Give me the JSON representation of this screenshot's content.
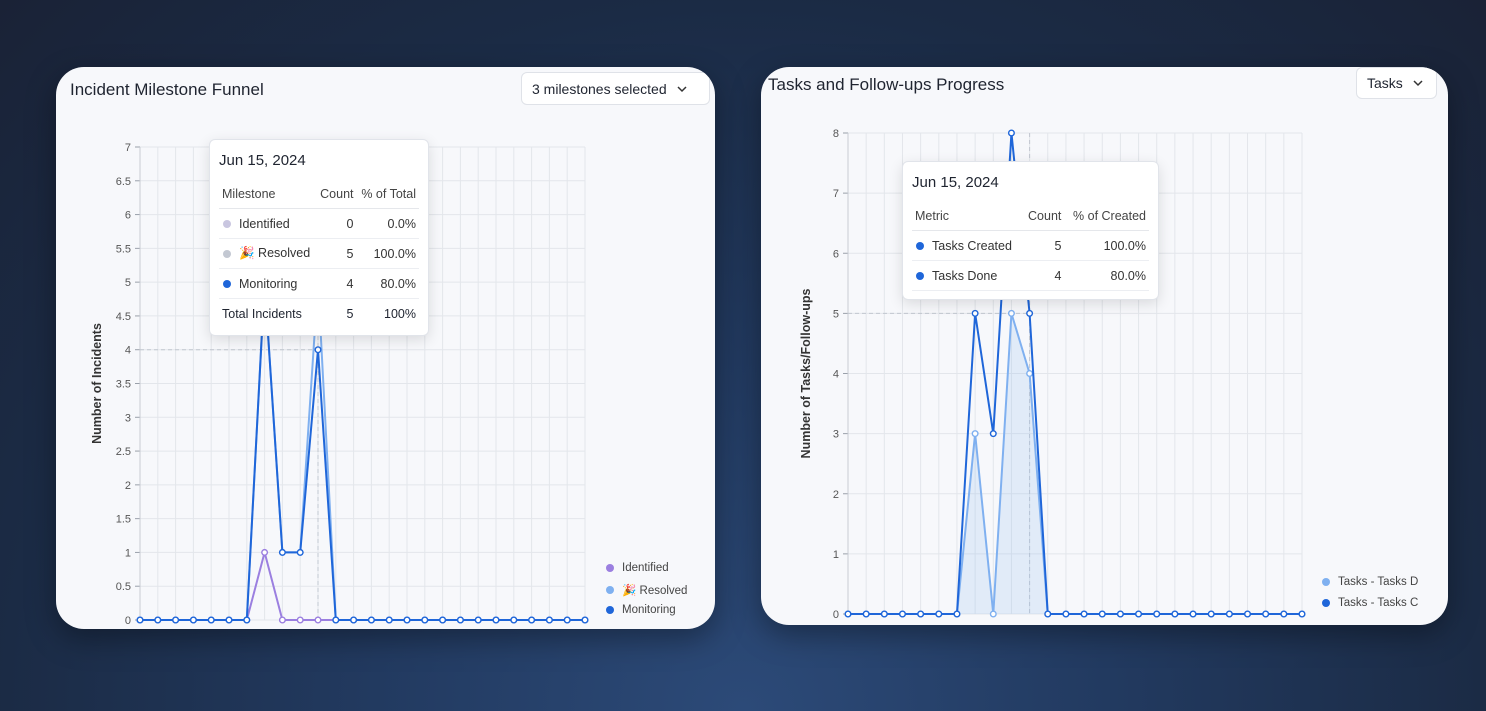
{
  "chart_data": [
    {
      "type": "line",
      "title": "Incident Milestone Funnel",
      "ylabel": "Number of Incidents",
      "xlabel": "",
      "ylim": [
        0,
        7
      ],
      "yticks": [
        "0",
        "0.5",
        "1",
        "1.5",
        "2",
        "2.5",
        "3",
        "3.5",
        "4",
        "4.5",
        "5",
        "5.5",
        "6",
        "6.5",
        "7"
      ],
      "x": [
        0,
        1,
        2,
        3,
        4,
        5,
        6,
        7,
        8,
        9,
        10,
        11,
        12,
        13,
        14,
        15,
        16,
        17,
        18,
        19,
        20,
        21,
        22,
        23,
        24,
        25
      ],
      "grid": true,
      "legend_position": "bottom-right",
      "series": [
        {
          "name": "Identified",
          "color": "#9b7fe0",
          "values": [
            0,
            0,
            0,
            0,
            0,
            0,
            0,
            1,
            0,
            0,
            0,
            0,
            0,
            0,
            0,
            0,
            0,
            0,
            0,
            0,
            0,
            0,
            0,
            0,
            0,
            0
          ]
        },
        {
          "name": "🎉 Resolved",
          "color": "#7fb0f0",
          "values": [
            0,
            0,
            0,
            0,
            0,
            0,
            0,
            5,
            1,
            1,
            5,
            0,
            0,
            0,
            0,
            0,
            0,
            0,
            0,
            0,
            0,
            0,
            0,
            0,
            0,
            0
          ]
        },
        {
          "name": "Monitoring",
          "color": "#1f66d9",
          "values": [
            0,
            0,
            0,
            0,
            0,
            0,
            0,
            5,
            1,
            1,
            4,
            0,
            0,
            0,
            0,
            0,
            0,
            0,
            0,
            0,
            0,
            0,
            0,
            0,
            0,
            0
          ]
        }
      ],
      "hover_index": 10,
      "tooltip": {
        "date": "Jun 15, 2024",
        "headers": [
          "Milestone",
          "Count",
          "% of Total"
        ],
        "rows": [
          {
            "label": "Identified",
            "count": "0",
            "pct": "0.0%",
            "color": "#c9c6e0"
          },
          {
            "label": "🎉 Resolved",
            "count": "5",
            "pct": "100.0%",
            "color": "#c3c8d2"
          },
          {
            "label": "Monitoring",
            "count": "4",
            "pct": "80.0%",
            "color": "#1f66d9"
          }
        ],
        "total": {
          "label": "Total Incidents",
          "count": "5",
          "pct": "100%"
        }
      }
    },
    {
      "type": "area",
      "title": "Tasks and Follow-ups Progress",
      "ylabel": "Number of Tasks/Follow-ups",
      "xlabel": "",
      "ylim": [
        0,
        8
      ],
      "yticks": [
        "0",
        "1",
        "2",
        "3",
        "4",
        "5",
        "6",
        "7",
        "8"
      ],
      "x": [
        0,
        1,
        2,
        3,
        4,
        5,
        6,
        7,
        8,
        9,
        10,
        11,
        12,
        13,
        14,
        15,
        16,
        17,
        18,
        19,
        20,
        21,
        22,
        23,
        24,
        25
      ],
      "grid": true,
      "legend_position": "bottom-right",
      "series": [
        {
          "name": "Tasks - Tasks D",
          "color": "#7fb0f0",
          "values": [
            0,
            0,
            0,
            0,
            0,
            0,
            0,
            3,
            0,
            5,
            4,
            0,
            0,
            0,
            0,
            0,
            0,
            0,
            0,
            0,
            0,
            0,
            0,
            0,
            0,
            0
          ]
        },
        {
          "name": "Tasks - Tasks C",
          "color": "#1f66d9",
          "values": [
            0,
            0,
            0,
            0,
            0,
            0,
            0,
            5,
            3,
            8,
            5,
            0,
            0,
            0,
            0,
            0,
            0,
            0,
            0,
            0,
            0,
            0,
            0,
            0,
            0,
            0
          ]
        }
      ],
      "hover_index": 10,
      "tooltip": {
        "date": "Jun 15, 2024",
        "headers": [
          "Metric",
          "Count",
          "% of Created"
        ],
        "rows": [
          {
            "label": "Tasks Created",
            "count": "5",
            "pct": "100.0%",
            "color": "#1f66d9"
          },
          {
            "label": "Tasks Done",
            "count": "4",
            "pct": "80.0%",
            "color": "#1f66d9"
          }
        ]
      }
    }
  ],
  "cards": {
    "incident": {
      "title": "Incident Milestone Funnel",
      "dropdown": "3 milestones selected"
    },
    "tasks": {
      "title": "Tasks and Follow-ups Progress",
      "dropdown": "Tasks"
    }
  }
}
